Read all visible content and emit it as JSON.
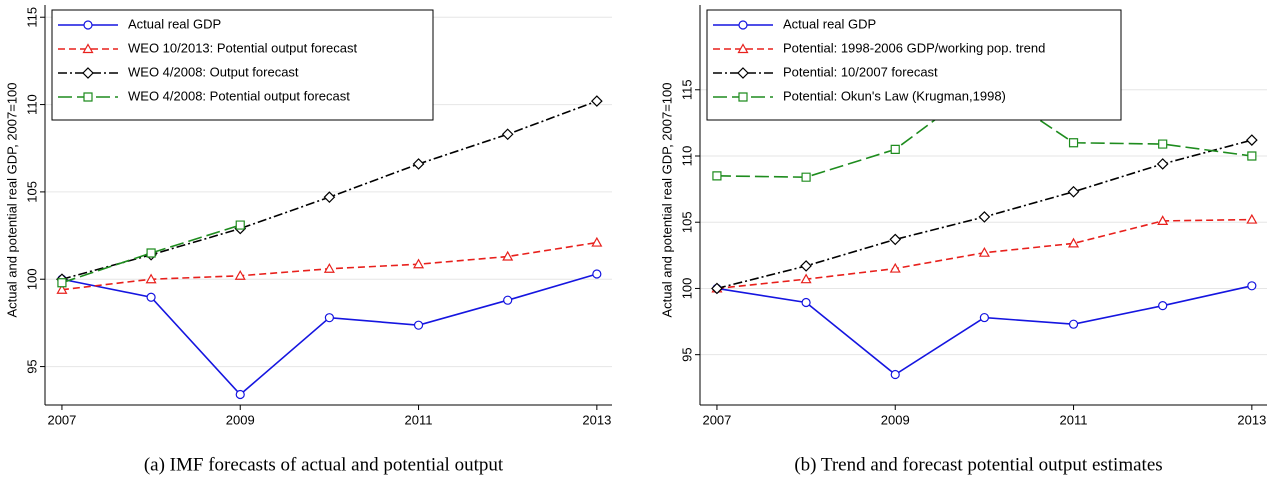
{
  "chart_data": [
    {
      "type": "line",
      "caption": "(a) IMF forecasts of actual and potential output",
      "y_label": "Actual and potential real GDP, 2007=100",
      "x": [
        2007,
        2008,
        2009,
        2010,
        2011,
        2012,
        2013
      ],
      "xlim": [
        2006.81,
        2013.17
      ],
      "xticks": [
        2007,
        2009,
        2011,
        2013
      ],
      "ylim": [
        92.8,
        115.7
      ],
      "yticks": [
        95,
        100,
        105,
        110,
        115
      ],
      "grid": true,
      "legend": "upper-left",
      "series": [
        {
          "name": "Actual real GDP",
          "color": "#1515e0",
          "dash": "solid",
          "marker": "circle",
          "values": [
            100,
            98.97,
            93.4,
            97.8,
            97.37,
            98.8,
            100.3
          ]
        },
        {
          "name": "WEO 10/2013: Potential output forecast",
          "color": "#e8201c",
          "dash": "dash",
          "marker": "triangle",
          "values": [
            99.4,
            100.0,
            100.2,
            100.6,
            100.86,
            101.3,
            102.1
          ]
        },
        {
          "name": "WEO 4/2008: Output forecast",
          "color": "#000000",
          "dash": "dashdot",
          "marker": "diamond",
          "values": [
            100,
            101.4,
            102.9,
            104.7,
            106.6,
            108.3,
            110.2
          ]
        },
        {
          "name": "WEO 4/2008: Potential output forecast",
          "color": "#1e8c1e",
          "dash": "longdash",
          "marker": "square",
          "values": [
            99.8,
            101.5,
            103.1,
            null,
            null,
            null,
            null
          ]
        }
      ]
    },
    {
      "type": "line",
      "caption": "(b) Trend and forecast potential output estimates",
      "y_label": "Actual and potential real GDP, 2007=100",
      "x": [
        2007,
        2008,
        2009,
        2010,
        2011,
        2012,
        2013
      ],
      "xlim": [
        2006.81,
        2013.17
      ],
      "xticks": [
        2007,
        2009,
        2011,
        2013
      ],
      "ylim": [
        91.2,
        121.4
      ],
      "yticks": [
        95,
        100,
        105,
        110,
        115
      ],
      "grid": true,
      "legend": "upper-left",
      "series": [
        {
          "name": "Actual real GDP",
          "color": "#1515e0",
          "dash": "solid",
          "marker": "circle",
          "values": [
            100,
            98.94,
            93.5,
            97.8,
            97.3,
            98.7,
            100.2
          ]
        },
        {
          "name": "Potential: 1998-2006 GDP/working pop. trend",
          "color": "#e8201c",
          "dash": "dash",
          "marker": "triangle",
          "values": [
            100,
            100.7,
            101.5,
            102.7,
            103.4,
            105.1,
            105.2
          ]
        },
        {
          "name": "Potential: 10/2007 forecast",
          "color": "#000000",
          "dash": "dashdot",
          "marker": "diamond",
          "values": [
            100,
            101.7,
            103.7,
            105.4,
            107.3,
            109.4,
            111.2
          ]
        },
        {
          "name": "Potential: Okun's Law (Krugman,1998)",
          "color": "#1e8c1e",
          "dash": "longdash",
          "marker": "square",
          "values": [
            108.5,
            108.4,
            110.5,
            115.5,
            111.0,
            110.9,
            110.0
          ]
        }
      ]
    }
  ]
}
